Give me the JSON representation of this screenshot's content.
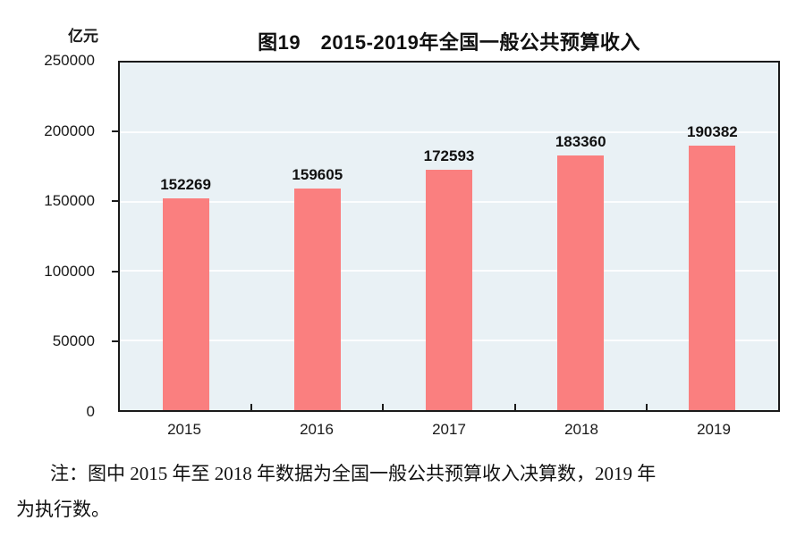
{
  "chart_data": {
    "type": "bar",
    "title": "图19　2015-2019年全国一般公共预算收入",
    "unit_label": "亿元",
    "categories": [
      "2015",
      "2016",
      "2017",
      "2018",
      "2019"
    ],
    "values": [
      152269,
      159605,
      172593,
      183360,
      190382
    ],
    "value_labels": [
      "152269",
      "159605",
      "172593",
      "183360",
      "190382"
    ],
    "ylim": [
      0,
      250000
    ],
    "ytick_labels": [
      "0",
      "50000",
      "100000",
      "150000",
      "200000",
      "250000"
    ],
    "gridlines": "horizontal-white",
    "legend_position": "none",
    "bar_color": "#fa7f7f",
    "plot_bg_color": "#e9f1f5",
    "axis_border_color": "#1a1a1a"
  },
  "note": {
    "line1": "注：图中 2015 年至 2018 年数据为全国一般公共预算收入决算数，2019 年",
    "line2": "为执行数。"
  }
}
